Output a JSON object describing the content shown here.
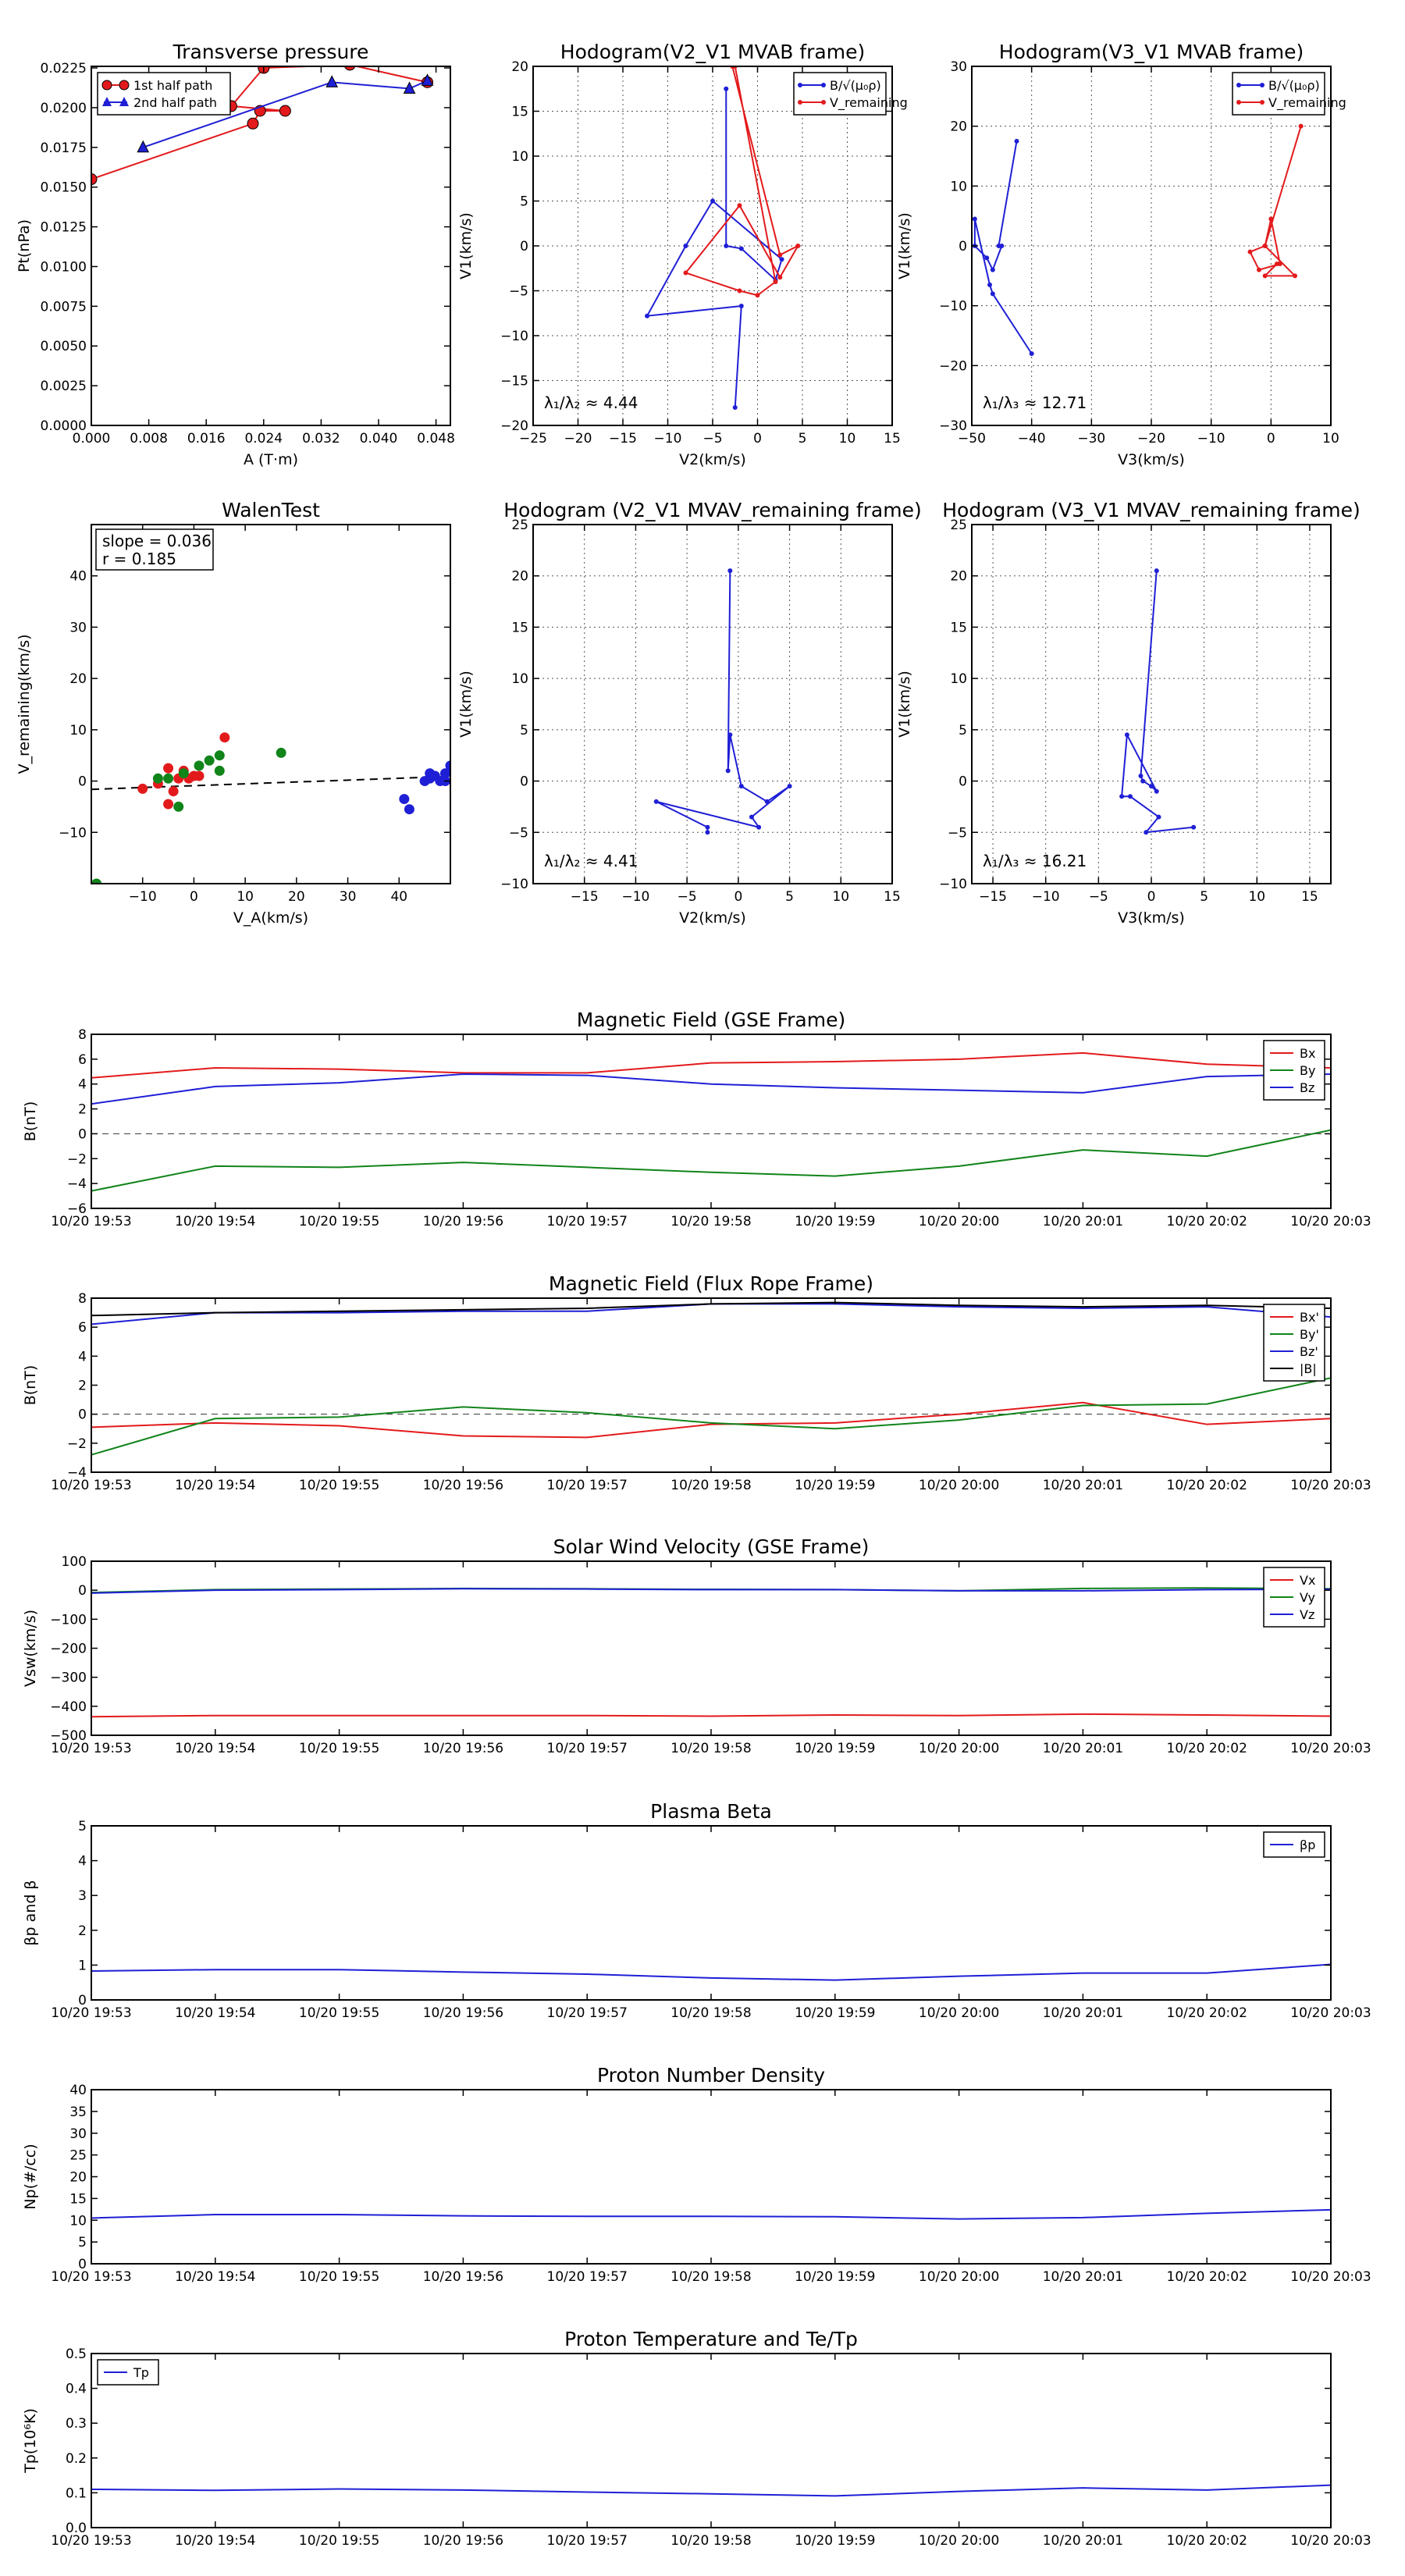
{
  "figure": {
    "title": "",
    "colors": {
      "red": "#e31a1c",
      "blue": "#1f1fd6",
      "green": "#11841a",
      "black": "#000000"
    }
  },
  "chart_data": [
    {
      "id": "tp",
      "type": "line",
      "title": "Transverse pressure",
      "xlabel": "A (T·m)",
      "ylabel": "Pt(nPa)",
      "xlim": [
        0,
        0.05
      ],
      "ylim": [
        0,
        0.0226
      ],
      "xticks": [
        "0.000",
        "0.008",
        "0.016",
        "0.024",
        "0.032",
        "0.040",
        "0.048"
      ],
      "xtickv": [
        0,
        0.008,
        0.016,
        0.024,
        0.032,
        0.04,
        0.048
      ],
      "yticks": [
        "0.0000",
        "0.0025",
        "0.0050",
        "0.0075",
        "0.0100",
        "0.0125",
        "0.0150",
        "0.0175",
        "0.0200",
        "0.0225"
      ],
      "ytickv": [
        0,
        0.0025,
        0.005,
        0.0075,
        0.01,
        0.0125,
        0.015,
        0.0175,
        0.02,
        0.0225
      ],
      "grid": false,
      "legend": "top-left",
      "series": [
        {
          "name": "1st half path",
          "color": "#e31a1c",
          "marker": "circle",
          "x": [
            0.0,
            0.0225,
            0.0235,
            0.027,
            0.0195,
            0.024,
            0.036,
            0.0468
          ],
          "y": [
            0.0155,
            0.019,
            0.0198,
            0.0198,
            0.0201,
            0.0225,
            0.0227,
            0.0216
          ]
        },
        {
          "name": "2nd half path",
          "color": "#1f1fd6",
          "marker": "triangle",
          "x": [
            0.0072,
            0.0335,
            0.0443,
            0.0468
          ],
          "y": [
            0.0175,
            0.0216,
            0.0212,
            0.0217
          ]
        }
      ]
    },
    {
      "id": "h1",
      "type": "line",
      "title": "Hodogram(V2_V1 MVAB frame)",
      "xlabel": "V2(km/s)",
      "ylabel": "V1(km/s)",
      "xlim": [
        -25,
        15
      ],
      "ylim": [
        -20,
        20
      ],
      "xticks": [
        "−25",
        "−20",
        "−15",
        "−10",
        "−5",
        "0",
        "5",
        "10",
        "15"
      ],
      "xtickv": [
        -25,
        -20,
        -15,
        -10,
        -5,
        0,
        5,
        10,
        15
      ],
      "yticks": [
        "−20",
        "−15",
        "−10",
        "−5",
        "0",
        "5",
        "10",
        "15",
        "20"
      ],
      "ytickv": [
        -20,
        -15,
        -10,
        -5,
        0,
        5,
        10,
        15,
        20
      ],
      "grid": true,
      "legend": "top-right",
      "annotation": "λ₁/λ₂ ≈ 4.44",
      "series": [
        {
          "name": "B/√(μ₀ρ)",
          "color": "#1f1fd6",
          "marker": "dot",
          "x": [
            -3.5,
            -3.5,
            -1.8,
            2.0,
            2.7,
            -5.0,
            -8.0,
            -12.3,
            -1.8,
            -2.5
          ],
          "y": [
            17.5,
            0.0,
            -0.3,
            -3.8,
            -1.5,
            5.0,
            0.0,
            -7.8,
            -6.7,
            -18.0
          ]
        },
        {
          "name": "V_remaining",
          "color": "#e31a1c",
          "marker": "dot",
          "x": [
            -2.8,
            2.5,
            4.5,
            2.5,
            -2.0,
            -8.0,
            -2.0,
            0.0,
            2.0,
            -2.5
          ],
          "y": [
            20.0,
            -1.0,
            0.0,
            -3.5,
            4.5,
            -3.0,
            -5.0,
            -5.5,
            -4.0,
            20.0
          ]
        }
      ]
    },
    {
      "id": "h2",
      "type": "line",
      "title": "Hodogram(V3_V1 MVAB frame)",
      "xlabel": "V3(km/s)",
      "ylabel": "V1(km/s)",
      "xlim": [
        -50,
        10
      ],
      "ylim": [
        -30,
        30
      ],
      "xticks": [
        "−50",
        "−40",
        "−30",
        "−20",
        "−10",
        "0",
        "10"
      ],
      "xtickv": [
        -50,
        -40,
        -30,
        -20,
        -10,
        0,
        10
      ],
      "yticks": [
        "−30",
        "−20",
        "−10",
        "0",
        "10",
        "20",
        "30"
      ],
      "ytickv": [
        -30,
        -20,
        -10,
        0,
        10,
        20,
        30
      ],
      "grid": true,
      "legend": "top-right",
      "annotation": "λ₁/λ₃ ≈ 12.71",
      "series": [
        {
          "name": "B/√(μ₀ρ)",
          "color": "#1f1fd6",
          "marker": "dot",
          "x": [
            -42.5,
            -45.5,
            -45.0,
            -46.5,
            -47.5,
            -49.5,
            -49.5,
            -47.0,
            -46.5,
            -40.0
          ],
          "y": [
            17.5,
            0.0,
            0.0,
            -4.0,
            -2.0,
            0.0,
            4.5,
            -6.5,
            -8.0,
            -18.0
          ]
        },
        {
          "name": "V_remaining",
          "color": "#e31a1c",
          "marker": "dot",
          "x": [
            5.0,
            -1.0,
            0.0,
            1.5,
            -2.0,
            -3.5,
            -1.0,
            4.0,
            -1.0,
            1.0
          ],
          "y": [
            20.0,
            0.0,
            4.5,
            -3.0,
            -4.0,
            -1.0,
            0.0,
            -5.0,
            -5.0,
            -3.0
          ]
        }
      ]
    },
    {
      "id": "walen",
      "type": "scatter",
      "title": "WalenTest",
      "xlabel": "V_A(km/s)",
      "ylabel": "V_remaining(km/s)",
      "xlim": [
        -20,
        50
      ],
      "ylim": [
        -20,
        50
      ],
      "xticks": [
        "−10",
        "0",
        "10",
        "20",
        "30",
        "40"
      ],
      "xtickv": [
        -10,
        0,
        10,
        20,
        30,
        40
      ],
      "yticks": [
        "−10",
        "0",
        "10",
        "20",
        "30",
        "40"
      ],
      "ytickv": [
        -10,
        0,
        10,
        20,
        30,
        40
      ],
      "grid": false,
      "annotation": [
        "slope = 0.036",
        "r = 0.185"
      ],
      "fit": {
        "slope": 0.036,
        "intercept": -0.9,
        "style": "dashed"
      },
      "series": [
        {
          "color": "#e31a1c",
          "x": [
            -10,
            -7,
            -5,
            -5,
            -4,
            -3,
            -2,
            -1,
            0,
            1,
            6
          ],
          "y": [
            -1.5,
            -0.5,
            2.5,
            -4.5,
            -2.0,
            0.5,
            2.0,
            0.5,
            1.0,
            1.0,
            8.5
          ]
        },
        {
          "color": "#11841a",
          "x": [
            -19,
            -7,
            -5,
            -3,
            -2,
            1,
            3,
            5,
            5,
            17
          ],
          "y": [
            -20,
            0.5,
            0.5,
            -5.0,
            1.5,
            3.0,
            4.0,
            2.0,
            5.0,
            5.5
          ]
        },
        {
          "color": "#1f1fd6",
          "x": [
            41,
            42,
            45,
            46,
            46,
            47,
            48,
            49,
            49,
            50
          ],
          "y": [
            -3.5,
            -5.5,
            0.0,
            1.5,
            0.5,
            1.0,
            0.0,
            1.5,
            0.0,
            3.0
          ]
        }
      ]
    },
    {
      "id": "h3",
      "type": "line",
      "title": "Hodogram (V2_V1 MVAV_remaining frame)",
      "xlabel": "V2(km/s)",
      "ylabel": "V1(km/s)",
      "xlim": [
        -20,
        15
      ],
      "ylim": [
        -10,
        25
      ],
      "xticks": [
        "−15",
        "−10",
        "−5",
        "0",
        "5",
        "10",
        "15"
      ],
      "xtickv": [
        -15,
        -10,
        -5,
        0,
        5,
        10,
        15
      ],
      "yticks": [
        "−10",
        "−5",
        "0",
        "5",
        "10",
        "15",
        "20",
        "25"
      ],
      "ytickv": [
        -10,
        -5,
        0,
        5,
        10,
        15,
        20,
        25
      ],
      "grid": true,
      "annotation": "λ₁/λ₂ ≈ 4.41",
      "series": [
        {
          "color": "#1f1fd6",
          "marker": "dot",
          "x": [
            -0.8,
            -1.0,
            -0.8,
            0.3,
            2.8,
            5.0,
            1.3,
            2.0,
            -8.0,
            -3.0,
            -3.0
          ],
          "y": [
            20.5,
            1.0,
            4.5,
            -0.5,
            -2.0,
            -0.5,
            -3.5,
            -4.5,
            -2.0,
            -4.5,
            -5.0
          ]
        }
      ]
    },
    {
      "id": "h4",
      "type": "line",
      "title": "Hodogram (V3_V1 MVAV_remaining frame)",
      "xlabel": "V3(km/s)",
      "ylabel": "V1(km/s)",
      "xlim": [
        -17,
        17
      ],
      "ylim": [
        -10,
        25
      ],
      "xticks": [
        "−15",
        "−10",
        "−5",
        "0",
        "5",
        "10",
        "15"
      ],
      "xtickv": [
        -15,
        -10,
        -5,
        0,
        5,
        10,
        15
      ],
      "yticks": [
        "−10",
        "−5",
        "0",
        "5",
        "10",
        "15",
        "20",
        "25"
      ],
      "ytickv": [
        -10,
        -5,
        0,
        5,
        10,
        15,
        20,
        25
      ],
      "grid": true,
      "annotation": "λ₁/λ₃ ≈ 16.21",
      "series": [
        {
          "color": "#1f1fd6",
          "marker": "dot",
          "x": [
            0.5,
            -1.0,
            -0.8,
            0.0,
            0.5,
            -2.3,
            -2.8,
            -2.0,
            0.7,
            -0.5,
            4.0
          ],
          "y": [
            20.5,
            0.5,
            0.0,
            -0.5,
            -1.0,
            4.5,
            -1.5,
            -1.5,
            -3.5,
            -5.0,
            -4.5
          ]
        }
      ]
    },
    {
      "id": "mag_gse",
      "type": "line",
      "title": "Magnetic Field (GSE Frame)",
      "xlabel": "",
      "ylabel": "B(nT)",
      "x": [
        "10/20 19:53",
        "10/20 19:54",
        "10/20 19:55",
        "10/20 19:56",
        "10/20 19:57",
        "10/20 19:58",
        "10/20 19:59",
        "10/20 20:00",
        "10/20 20:01",
        "10/20 20:02",
        "10/20 20:03"
      ],
      "ylim": [
        -6,
        8
      ],
      "yticks": [
        "−6",
        "−4",
        "−2",
        "0",
        "2",
        "4",
        "6",
        "8"
      ],
      "ytickv": [
        -6,
        -4,
        -2,
        0,
        2,
        4,
        6,
        8
      ],
      "zeroline": true,
      "grid": false,
      "legend": "top-right",
      "series": [
        {
          "name": "Bx",
          "color": "#e31a1c",
          "values": [
            4.5,
            5.3,
            5.2,
            4.9,
            4.9,
            5.7,
            5.8,
            6.0,
            6.5,
            5.6,
            5.3
          ]
        },
        {
          "name": "By",
          "color": "#11841a",
          "values": [
            -4.6,
            -2.6,
            -2.7,
            -2.3,
            -2.7,
            -3.1,
            -3.4,
            -2.6,
            -1.3,
            -1.8,
            0.3
          ]
        },
        {
          "name": "Bz",
          "color": "#1f1fd6",
          "values": [
            2.4,
            3.8,
            4.1,
            4.8,
            4.7,
            4.0,
            3.7,
            3.5,
            3.3,
            4.6,
            4.8
          ]
        }
      ]
    },
    {
      "id": "mag_fr",
      "type": "line",
      "title": "Magnetic Field (Flux Rope Frame)",
      "xlabel": "",
      "ylabel": "B(nT)",
      "x": [
        "10/20 19:53",
        "10/20 19:54",
        "10/20 19:55",
        "10/20 19:56",
        "10/20 19:57",
        "10/20 19:58",
        "10/20 19:59",
        "10/20 20:00",
        "10/20 20:01",
        "10/20 20:02",
        "10/20 20:03"
      ],
      "ylim": [
        -4,
        8
      ],
      "yticks": [
        "−4",
        "−2",
        "0",
        "2",
        "4",
        "6",
        "8"
      ],
      "ytickv": [
        -4,
        -2,
        0,
        2,
        4,
        6,
        8
      ],
      "zeroline": true,
      "grid": false,
      "legend": "top-right",
      "series": [
        {
          "name": "Bx'",
          "color": "#e31a1c",
          "values": [
            -0.9,
            -0.6,
            -0.8,
            -1.5,
            -1.6,
            -0.7,
            -0.6,
            0.0,
            0.8,
            -0.7,
            -0.3
          ]
        },
        {
          "name": "By'",
          "color": "#11841a",
          "values": [
            -2.8,
            -0.3,
            -0.2,
            0.5,
            0.1,
            -0.6,
            -1.0,
            -0.4,
            0.6,
            0.7,
            2.5
          ]
        },
        {
          "name": "Bz'",
          "color": "#1f1fd6",
          "values": [
            6.2,
            7.0,
            7.0,
            7.1,
            7.1,
            7.6,
            7.6,
            7.4,
            7.3,
            7.4,
            6.7
          ]
        },
        {
          "name": "|B|",
          "color": "#000000",
          "values": [
            6.8,
            7.0,
            7.1,
            7.2,
            7.3,
            7.6,
            7.7,
            7.5,
            7.4,
            7.5,
            7.3
          ]
        }
      ]
    },
    {
      "id": "vel",
      "type": "line",
      "title": "Solar Wind Velocity (GSE Frame)",
      "xlabel": "",
      "ylabel": "Vsw(km/s)",
      "x": [
        "10/20 19:53",
        "10/20 19:54",
        "10/20 19:55",
        "10/20 19:56",
        "10/20 19:57",
        "10/20 19:58",
        "10/20 19:59",
        "10/20 20:00",
        "10/20 20:01",
        "10/20 20:02",
        "10/20 20:03"
      ],
      "ylim": [
        -500,
        100
      ],
      "yticks": [
        "−500",
        "−400",
        "−300",
        "−200",
        "−100",
        "0",
        "100"
      ],
      "ytickv": [
        -500,
        -400,
        -300,
        -200,
        -100,
        0,
        100
      ],
      "grid": false,
      "legend": "top-right",
      "series": [
        {
          "name": "Vx",
          "color": "#e31a1c",
          "values": [
            -436,
            -432,
            -432,
            -432,
            -432,
            -434,
            -430,
            -432,
            -427,
            -430,
            -434
          ]
        },
        {
          "name": "Vy",
          "color": "#11841a",
          "values": [
            -8,
            2,
            4,
            6,
            5,
            3,
            2,
            -2,
            6,
            8,
            5
          ]
        },
        {
          "name": "Vz",
          "color": "#1f1fd6",
          "values": [
            -10,
            0,
            2,
            5,
            4,
            2,
            2,
            -2,
            -2,
            2,
            3
          ]
        }
      ]
    },
    {
      "id": "beta",
      "type": "line",
      "title": "Plasma Beta",
      "xlabel": "",
      "ylabel": "βp and β",
      "x": [
        "10/20 19:53",
        "10/20 19:54",
        "10/20 19:55",
        "10/20 19:56",
        "10/20 19:57",
        "10/20 19:58",
        "10/20 19:59",
        "10/20 20:00",
        "10/20 20:01",
        "10/20 20:02",
        "10/20 20:03"
      ],
      "ylim": [
        0,
        5
      ],
      "yticks": [
        "0",
        "1",
        "2",
        "3",
        "4",
        "5"
      ],
      "ytickv": [
        0,
        1,
        2,
        3,
        4,
        5
      ],
      "grid": false,
      "legend": "top-right",
      "series": [
        {
          "name": "βp",
          "color": "#1f1fd6",
          "values": [
            0.83,
            0.87,
            0.87,
            0.8,
            0.74,
            0.63,
            0.57,
            0.68,
            0.77,
            0.77,
            1.02
          ]
        }
      ]
    },
    {
      "id": "np",
      "type": "line",
      "title": "Proton Number Density",
      "xlabel": "",
      "ylabel": "Np(#/cc)",
      "x": [
        "10/20 19:53",
        "10/20 19:54",
        "10/20 19:55",
        "10/20 19:56",
        "10/20 19:57",
        "10/20 19:58",
        "10/20 19:59",
        "10/20 20:00",
        "10/20 20:01",
        "10/20 20:02",
        "10/20 20:03"
      ],
      "ylim": [
        0,
        40
      ],
      "yticks": [
        "0",
        "5",
        "10",
        "15",
        "20",
        "25",
        "30",
        "35",
        "40"
      ],
      "ytickv": [
        0,
        5,
        10,
        15,
        20,
        25,
        30,
        35,
        40
      ],
      "grid": false,
      "series": [
        {
          "color": "#1f1fd6",
          "values": [
            10.5,
            11.3,
            11.3,
            11.0,
            10.9,
            10.9,
            10.8,
            10.3,
            10.6,
            11.6,
            12.4
          ]
        }
      ]
    },
    {
      "id": "temp",
      "type": "line",
      "title": "Proton Temperature and Te/Tp",
      "xlabel": "",
      "ylabel": "Tp(10⁶K)",
      "x": [
        "10/20 19:53",
        "10/20 19:54",
        "10/20 19:55",
        "10/20 19:56",
        "10/20 19:57",
        "10/20 19:58",
        "10/20 19:59",
        "10/20 20:00",
        "10/20 20:01",
        "10/20 20:02",
        "10/20 20:03"
      ],
      "ylim": [
        0,
        0.5
      ],
      "yticks": [
        "0.0",
        "0.1",
        "0.2",
        "0.3",
        "0.4",
        "0.5"
      ],
      "ytickv": [
        0,
        0.1,
        0.2,
        0.3,
        0.4,
        0.5
      ],
      "grid": false,
      "legend": "top-left",
      "series": [
        {
          "name": "Tp",
          "color": "#1f1fd6",
          "values": [
            0.11,
            0.107,
            0.111,
            0.108,
            0.102,
            0.097,
            0.091,
            0.104,
            0.114,
            0.108,
            0.122
          ]
        }
      ]
    }
  ]
}
